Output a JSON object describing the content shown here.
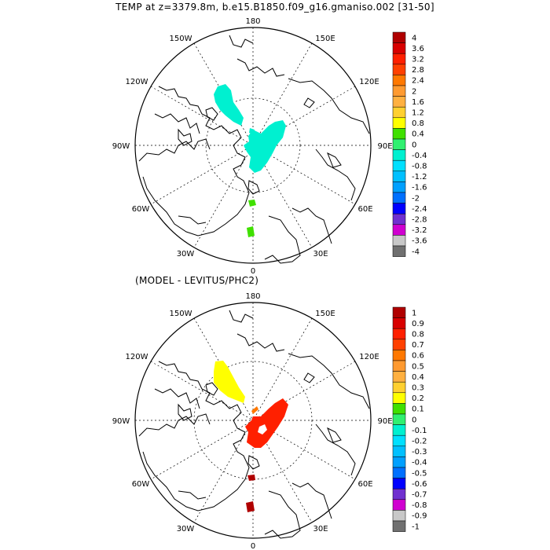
{
  "title": "TEMP at z=3379.8m, b.e15.B1850.f09_g16.gmaniso.002 [31-50]",
  "subtitle": "(MODEL - LEVITUS/PHC2)",
  "longitude_labels": {
    "top": "180",
    "upper_left": "150W",
    "upper_right": "150E",
    "mid_upper_left": "120W",
    "mid_upper_right": "120E",
    "left": "90W",
    "right": "90E",
    "lower_left": "60W",
    "lower_right": "60E",
    "bottom_left": "30W",
    "bottom_right": "30E",
    "bottom": "0"
  },
  "colorbar_colors": [
    "#b00000",
    "#d80000",
    "#ff2000",
    "#ff4000",
    "#ff7800",
    "#ff9a30",
    "#ffb040",
    "#ffd030",
    "#ffff00",
    "#40e000",
    "#30f070",
    "#00f0d0",
    "#00e0ff",
    "#00c0ff",
    "#00a0ff",
    "#0070ff",
    "#0000ff",
    "#7030d0",
    "#d000d0",
    "#c8c8c8",
    "#707070"
  ],
  "top_panel": {
    "colorbar_labels": [
      "4",
      "3.6",
      "3.2",
      "2.8",
      "2.4",
      "2",
      "1.6",
      "1.2",
      "0.8",
      "0.4",
      "0",
      "-0.4",
      "-0.8",
      "-1.2",
      "-1.6",
      "-2",
      "-2.4",
      "-2.8",
      "-3.2",
      "-3.6",
      "-4"
    ]
  },
  "bottom_panel": {
    "colorbar_labels": [
      "1",
      "0.9",
      "0.8",
      "0.7",
      "0.6",
      "0.5",
      "0.4",
      "0.3",
      "0.2",
      "0.1",
      "0",
      "-0.1",
      "-0.2",
      "-0.3",
      "-0.4",
      "-0.5",
      "-0.6",
      "-0.7",
      "-0.8",
      "-0.9",
      "-1"
    ]
  }
}
